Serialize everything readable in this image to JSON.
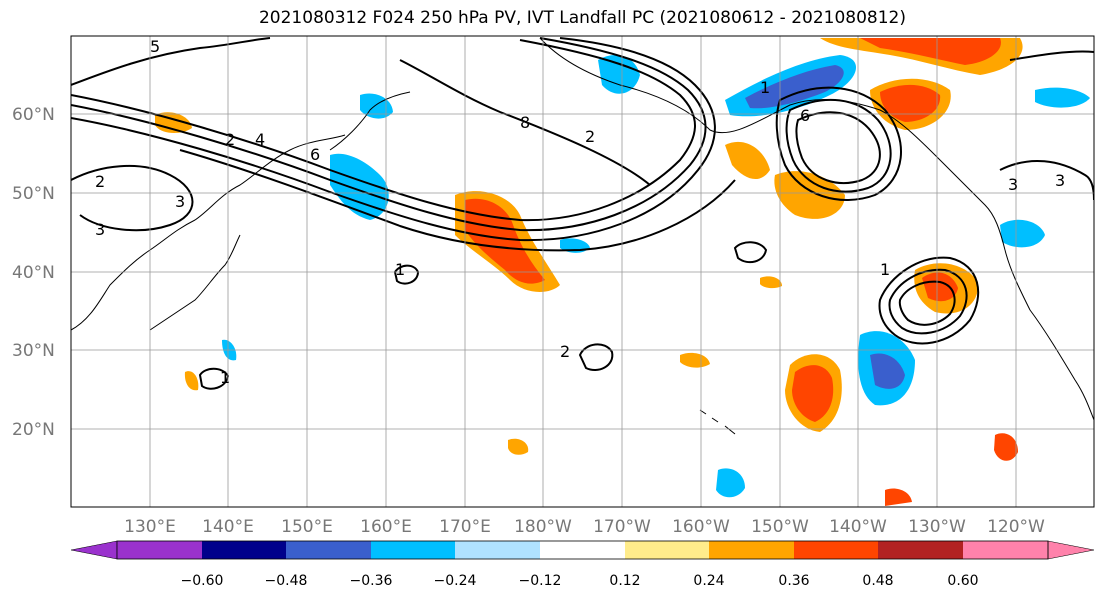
{
  "title": "2021080312 F024 250 hPa PV, IVT Landfall PC (2021080612 - 2021080812)",
  "map": {
    "lon_labels": [
      "130°E",
      "140°E",
      "150°E",
      "160°E",
      "170°E",
      "180°W",
      "170°W",
      "160°W",
      "150°W",
      "140°W",
      "130°W",
      "120°W"
    ],
    "lat_labels": [
      "60°N",
      "50°N",
      "40°N",
      "30°N",
      "20°N"
    ],
    "grid": true
  },
  "contour_labels": [
    "5",
    "2",
    "4",
    "6",
    "2",
    "3",
    "3",
    "8",
    "2",
    "2",
    "1",
    "3",
    "3",
    "1",
    "1",
    "1",
    "6"
  ],
  "colorbar": {
    "extend": "both",
    "ticks": [
      "−0.60",
      "−0.48",
      "−0.36",
      "−0.24",
      "−0.12",
      "0.12",
      "0.24",
      "0.36",
      "0.48",
      "0.60"
    ],
    "colors": [
      "#9a32cd",
      "#00008b",
      "#3a5fcd",
      "#00bfff",
      "#b0e2ff",
      "#ffffff",
      "#ffec8b",
      "#ffa500",
      "#ff4500",
      "#b22222",
      "#ff82ab"
    ]
  }
}
